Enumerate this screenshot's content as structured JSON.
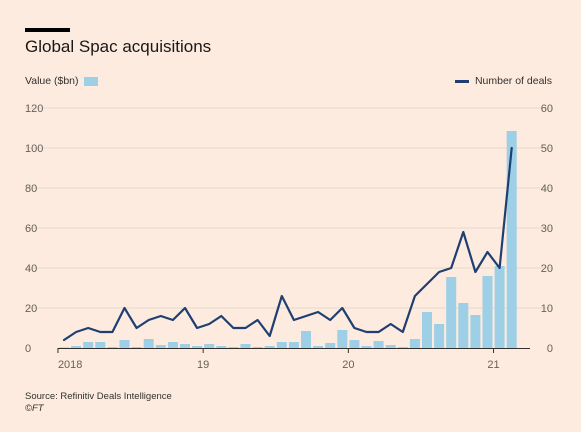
{
  "header": {
    "title": "Global Spac acquisitions"
  },
  "legend": {
    "bars_label": "Value ($bn)",
    "line_label": "Number of deals"
  },
  "footer": {
    "source": "Source: Refinitiv Deals Intelligence",
    "credit": "©FT"
  },
  "colors": {
    "background": "#fcebde",
    "bar": "#9dcfe6",
    "line": "#1f3f72",
    "grid": "#e6d9ce",
    "axis": "#33302e"
  },
  "chart_data": {
    "type": "bar",
    "title": "Global Spac acquisitions",
    "xlabel": "",
    "ylabel": "",
    "x_tick_labels": [
      "2018",
      "19",
      "20",
      "21"
    ],
    "left_axis": {
      "label": "Value ($bn)",
      "ylim": [
        0,
        120
      ],
      "ticks": [
        0,
        20,
        40,
        60,
        80,
        100,
        120
      ]
    },
    "right_axis": {
      "label": "Number of deals",
      "ylim": [
        0,
        60
      ],
      "ticks": [
        0,
        10,
        20,
        30,
        40,
        50,
        60
      ]
    },
    "grid": true,
    "series": [
      {
        "name": "Value ($bn)",
        "type": "bar",
        "axis": "left",
        "values": [
          0.3,
          1,
          3,
          3,
          0.5,
          4,
          0.5,
          4.5,
          1.5,
          3,
          2,
          1,
          2,
          1,
          0.5,
          2,
          0.5,
          1,
          3,
          3,
          8.5,
          1,
          2.5,
          9,
          4,
          1,
          3.5,
          1.5,
          0.5,
          4.5,
          18,
          12,
          35.5,
          22.5,
          16.5,
          36,
          41,
          108.5
        ]
      },
      {
        "name": "Number of deals",
        "type": "line",
        "axis": "right",
        "values": [
          2,
          4,
          5,
          4,
          4,
          10,
          5,
          7,
          8,
          7,
          10,
          5,
          6,
          8,
          5,
          5,
          7,
          3,
          13,
          7,
          8,
          9,
          7,
          10,
          5,
          4,
          4,
          6,
          4,
          13,
          16,
          19,
          20,
          29,
          19,
          24,
          20,
          50
        ]
      }
    ]
  }
}
